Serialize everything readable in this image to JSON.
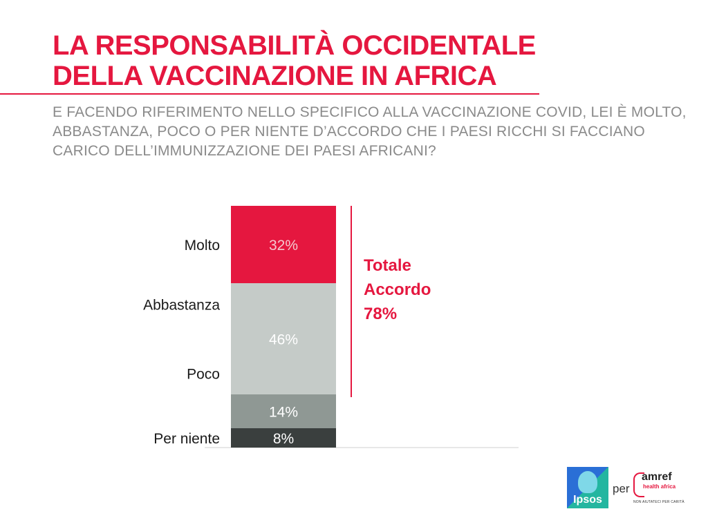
{
  "header": {
    "title_line1": "LA RESPONSABILITÀ OCCIDENTALE",
    "title_line2": "DELLA VACCINAZIONE IN AFRICA",
    "question": "E FACENDO RIFERIMENTO NELLO SPECIFICO ALLA VACCINAZIONE COVID, LEI È MOLTO, ABBASTANZA, POCO O PER NIENTE D’ACCORDO CHE I PAESI RICCHI SI FACCIANO CARICO DELL’IMMUNIZZAZIONE DEI PAESI AFRICANI?"
  },
  "colors": {
    "accent": "#e5173f",
    "molto": "#e5173f",
    "abbastanza": "#c5cbc8",
    "poco": "#8f9894",
    "per_niente": "#3a3f3e"
  },
  "chart_data": {
    "type": "bar",
    "stacked": true,
    "orientation": "vertical",
    "categories": [
      "Molto",
      "Abbastanza",
      "Poco",
      "Per niente"
    ],
    "values": [
      32,
      46,
      14,
      8
    ],
    "value_labels": [
      "32%",
      "46%",
      "14%",
      "8%"
    ],
    "unit": "%",
    "total_agreement": {
      "label_line1": "Totale",
      "label_line2": "Accordo",
      "value_label": "78%",
      "value": 78
    }
  },
  "logos": {
    "ipsos": "Ipsos",
    "connector": "per",
    "amref_name": "amref",
    "amref_sub": "health africa",
    "amref_tagline": "NON AIUTATECI PER CARITÀ"
  }
}
